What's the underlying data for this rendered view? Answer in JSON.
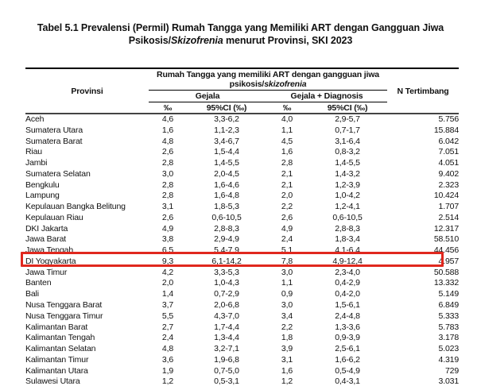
{
  "title": {
    "line1": "Tabel 5.1 Prevalensi (Permil) Rumah Tangga yang Memiliki ART dengan Gangguan Jiwa",
    "line2_prefix": "Psikosis/",
    "line2_italic": "Skizofrenia",
    "line2_suffix": " menurut Provinsi, SKI 2023"
  },
  "colors": {
    "highlight_border": "#e0281e",
    "text": "#111111",
    "background": "#ffffff"
  },
  "table": {
    "header": {
      "provinsi": "Provinsi",
      "n_tertimbang": "N Tertimbang",
      "group_line1": "Rumah Tangga yang memiliki ART dengan gangguan jiwa",
      "group_line2_prefix": "psikosis/",
      "group_line2_italic": "skizofrenia",
      "gejala": "Gejala",
      "gejala_diagnosis": "Gejala + Diagnosis",
      "permil": "‰",
      "ci_permil": "95%CI (‰)"
    },
    "highlighted_row": "DI Yogyakarta",
    "rows": [
      {
        "name": "Aceh",
        "g_permil": "4,6",
        "g_ci": "3,3-6,2",
        "gd_permil": "4,0",
        "gd_ci": "2,9-5,7",
        "n": "5.756",
        "highlight": false
      },
      {
        "name": "Sumatera Utara",
        "g_permil": "1,6",
        "g_ci": "1,1-2,3",
        "gd_permil": "1,1",
        "gd_ci": "0,7-1,7",
        "n": "15.884",
        "highlight": false
      },
      {
        "name": "Sumatera Barat",
        "g_permil": "4,8",
        "g_ci": "3,4-6,7",
        "gd_permil": "4,5",
        "gd_ci": "3,1-6,4",
        "n": "6.042",
        "highlight": false
      },
      {
        "name": "Riau",
        "g_permil": "2,6",
        "g_ci": "1,5-4,4",
        "gd_permil": "1,6",
        "gd_ci": "0,8-3,2",
        "n": "7.051",
        "highlight": false
      },
      {
        "name": "Jambi",
        "g_permil": "2,8",
        "g_ci": "1,4-5,5",
        "gd_permil": "2,8",
        "gd_ci": "1,4-5,5",
        "n": "4.051",
        "highlight": false
      },
      {
        "name": "Sumatera Selatan",
        "g_permil": "3,0",
        "g_ci": "2,0-4,5",
        "gd_permil": "2,1",
        "gd_ci": "1,4-3,2",
        "n": "9.402",
        "highlight": false
      },
      {
        "name": "Bengkulu",
        "g_permil": "2,8",
        "g_ci": "1,6-4,6",
        "gd_permil": "2,1",
        "gd_ci": "1,2-3,9",
        "n": "2.323",
        "highlight": false
      },
      {
        "name": "Lampung",
        "g_permil": "2,8",
        "g_ci": "1,6-4,8",
        "gd_permil": "2,0",
        "gd_ci": "1,0-4,2",
        "n": "10.424",
        "highlight": false
      },
      {
        "name": "Kepulauan Bangka Belitung",
        "g_permil": "3,1",
        "g_ci": "1,8-5,3",
        "gd_permil": "2,2",
        "gd_ci": "1,2-4,1",
        "n": "1.707",
        "highlight": false
      },
      {
        "name": "Kepulauan Riau",
        "g_permil": "2,6",
        "g_ci": "0,6-10,5",
        "gd_permil": "2,6",
        "gd_ci": "0,6-10,5",
        "n": "2.514",
        "highlight": false
      },
      {
        "name": "DKI Jakarta",
        "g_permil": "4,9",
        "g_ci": "2,8-8,3",
        "gd_permil": "4,9",
        "gd_ci": "2,8-8,3",
        "n": "12.317",
        "highlight": false
      },
      {
        "name": "Jawa Barat",
        "g_permil": "3,8",
        "g_ci": "2,9-4,9",
        "gd_permil": "2,4",
        "gd_ci": "1,8-3,4",
        "n": "58.510",
        "highlight": false
      },
      {
        "name": "Jawa Tengah",
        "g_permil": "6,5",
        "g_ci": "5,4-7,9",
        "gd_permil": "5,1",
        "gd_ci": "4,1-6,4",
        "n": "44.456",
        "highlight": false
      },
      {
        "name": "DI Yogyakarta",
        "g_permil": "9,3",
        "g_ci": "6,1-14,2",
        "gd_permil": "7,8",
        "gd_ci": "4,9-12,4",
        "n": "4.957",
        "highlight": true
      },
      {
        "name": "Jawa Timur",
        "g_permil": "4,2",
        "g_ci": "3,3-5,3",
        "gd_permil": "3,0",
        "gd_ci": "2,3-4,0",
        "n": "50.588",
        "highlight": false
      },
      {
        "name": "Banten",
        "g_permil": "2,0",
        "g_ci": "1,0-4,3",
        "gd_permil": "1,1",
        "gd_ci": "0,4-2,9",
        "n": "13.332",
        "highlight": false
      },
      {
        "name": "Bali",
        "g_permil": "1,4",
        "g_ci": "0,7-2,9",
        "gd_permil": "0,9",
        "gd_ci": "0,4-2,0",
        "n": "5.149",
        "highlight": false
      },
      {
        "name": "Nusa Tenggara Barat",
        "g_permil": "3,7",
        "g_ci": "2,0-6,8",
        "gd_permil": "3,0",
        "gd_ci": "1,5-6,1",
        "n": "6.849",
        "highlight": false
      },
      {
        "name": "Nusa Tenggara Timur",
        "g_permil": "5,5",
        "g_ci": "4,3-7,0",
        "gd_permil": "3,4",
        "gd_ci": "2,4-4,8",
        "n": "5.333",
        "highlight": false
      },
      {
        "name": "Kalimantan Barat",
        "g_permil": "2,7",
        "g_ci": "1,7-4,4",
        "gd_permil": "2,2",
        "gd_ci": "1,3-3,6",
        "n": "5.783",
        "highlight": false
      },
      {
        "name": "Kalimantan Tengah",
        "g_permil": "2,4",
        "g_ci": "1,3-4,4",
        "gd_permil": "1,8",
        "gd_ci": "0,9-3,9",
        "n": "3.178",
        "highlight": false
      },
      {
        "name": "Kalimantan Selatan",
        "g_permil": "4,8",
        "g_ci": "3,2-7,1",
        "gd_permil": "3,9",
        "gd_ci": "2,5-6,1",
        "n": "5.023",
        "highlight": false
      },
      {
        "name": "Kalimantan Timur",
        "g_permil": "3,6",
        "g_ci": "1,9-6,8",
        "gd_permil": "3,1",
        "gd_ci": "1,6-6,2",
        "n": "4.319",
        "highlight": false
      },
      {
        "name": "Kalimantan Utara",
        "g_permil": "1,9",
        "g_ci": "0,7-5,0",
        "gd_permil": "1,6",
        "gd_ci": "0,5-4,9",
        "n": "729",
        "highlight": false
      },
      {
        "name": "Sulawesi Utara",
        "g_permil": "1,2",
        "g_ci": "0,5-3,1",
        "gd_permil": "1,2",
        "gd_ci": "0,4-3,1",
        "n": "3.031",
        "highlight": false
      }
    ]
  }
}
